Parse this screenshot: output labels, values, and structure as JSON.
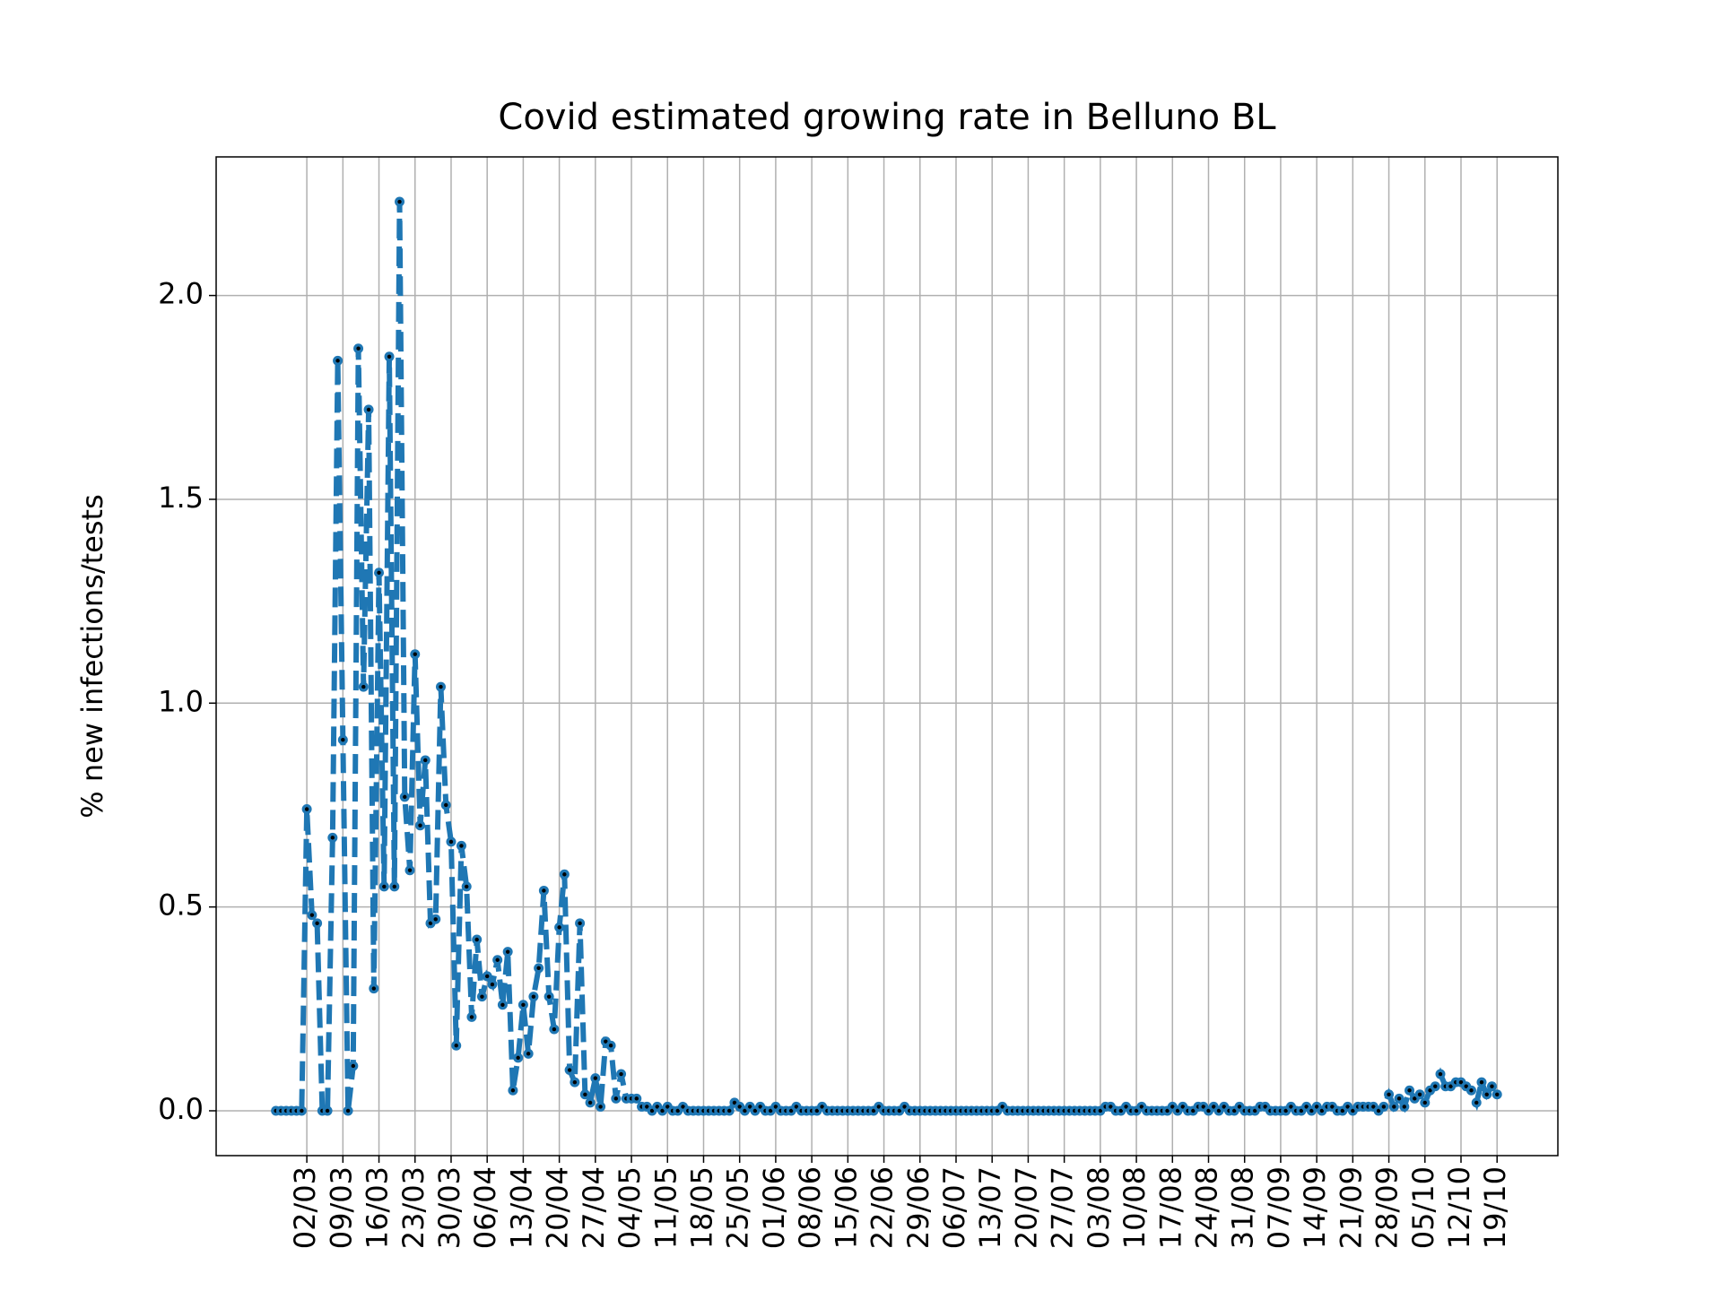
{
  "chart_data": {
    "type": "line",
    "title": "Covid estimated growing rate in Belluno BL",
    "y_label": "% new infections/tests",
    "color": "#1f77b4",
    "grid": true,
    "categories": [
      "25/02",
      "26/02",
      "27/02",
      "28/02",
      "29/02",
      "01/03",
      "02/03",
      "03/03",
      "04/03",
      "05/03",
      "06/03",
      "07/03",
      "08/03",
      "09/03",
      "10/03",
      "11/03",
      "12/03",
      "13/03",
      "14/03",
      "15/03",
      "16/03",
      "17/03",
      "18/03",
      "19/03",
      "20/03",
      "21/03",
      "22/03",
      "23/03",
      "24/03",
      "25/03",
      "26/03",
      "27/03",
      "28/03",
      "29/03",
      "30/03",
      "31/03",
      "01/04",
      "02/04",
      "03/04",
      "04/04",
      "05/04",
      "06/04",
      "07/04",
      "08/04",
      "09/04",
      "10/04",
      "11/04",
      "12/04",
      "13/04",
      "14/04",
      "15/04",
      "16/04",
      "17/04",
      "18/04",
      "19/04",
      "20/04",
      "21/04",
      "22/04",
      "23/04",
      "24/04",
      "25/04",
      "26/04",
      "27/04",
      "28/04",
      "29/04",
      "30/04",
      "01/05",
      "02/05",
      "03/05",
      "04/05",
      "05/05",
      "06/05",
      "07/05",
      "08/05",
      "09/05",
      "10/05",
      "11/05",
      "12/05",
      "13/05",
      "14/05",
      "15/05",
      "16/05",
      "17/05",
      "18/05",
      "19/05",
      "20/05",
      "21/05",
      "22/05",
      "23/05",
      "24/05",
      "25/05",
      "26/05",
      "27/05",
      "28/05",
      "29/05",
      "30/05",
      "31/05",
      "01/06",
      "02/06",
      "03/06",
      "04/06",
      "05/06",
      "06/06",
      "07/06",
      "08/06",
      "09/06",
      "10/06",
      "11/06",
      "12/06",
      "13/06",
      "14/06",
      "15/06",
      "16/06",
      "17/06",
      "18/06",
      "19/06",
      "20/06",
      "21/06",
      "22/06",
      "23/06",
      "24/06",
      "25/06",
      "26/06",
      "27/06",
      "28/06",
      "29/06",
      "30/06",
      "01/07",
      "02/07",
      "03/07",
      "04/07",
      "05/07",
      "06/07",
      "07/07",
      "08/07",
      "09/07",
      "10/07",
      "11/07",
      "12/07",
      "13/07",
      "14/07",
      "15/07",
      "16/07",
      "17/07",
      "18/07",
      "19/07",
      "20/07",
      "21/07",
      "22/07",
      "23/07",
      "24/07",
      "25/07",
      "26/07",
      "27/07",
      "28/07",
      "29/07",
      "30/07",
      "31/07",
      "01/08",
      "02/08",
      "03/08",
      "04/08",
      "05/08",
      "06/08",
      "07/08",
      "08/08",
      "09/08",
      "10/08",
      "11/08",
      "12/08",
      "13/08",
      "14/08",
      "15/08",
      "16/08",
      "17/08",
      "18/08",
      "19/08",
      "20/08",
      "21/08",
      "22/08",
      "23/08",
      "24/08",
      "25/08",
      "26/08",
      "27/08",
      "28/08",
      "29/08",
      "30/08",
      "31/08",
      "01/09",
      "02/09",
      "03/09",
      "04/09",
      "05/09",
      "06/09",
      "07/09",
      "08/09",
      "09/09",
      "10/09",
      "11/09",
      "12/09",
      "13/09",
      "14/09",
      "15/09",
      "16/09",
      "17/09",
      "18/09",
      "19/09",
      "20/09",
      "21/09",
      "22/09",
      "23/09",
      "24/09",
      "25/09",
      "26/09",
      "27/09",
      "28/09",
      "29/09",
      "30/09",
      "01/10",
      "02/10",
      "03/10",
      "04/10",
      "05/10",
      "06/10",
      "07/10",
      "08/10",
      "09/10",
      "10/10",
      "11/10",
      "12/10",
      "13/10",
      "14/10",
      "15/10",
      "16/10",
      "17/10",
      "18/10",
      "19/10"
    ],
    "values": [
      0,
      0,
      0,
      0,
      0,
      0,
      0.74,
      0.48,
      0.46,
      0,
      0,
      0.67,
      1.84,
      0.91,
      0,
      0.11,
      1.87,
      1.04,
      1.72,
      0.3,
      1.32,
      0.55,
      1.85,
      0.55,
      2.23,
      0.77,
      0.59,
      1.12,
      0.7,
      0.86,
      0.46,
      0.47,
      1.04,
      0.75,
      0.66,
      0.16,
      0.65,
      0.55,
      0.23,
      0.42,
      0.28,
      0.33,
      0.31,
      0.37,
      0.26,
      0.39,
      0.05,
      0.13,
      0.26,
      0.14,
      0.28,
      0.35,
      0.54,
      0.28,
      0.2,
      0.45,
      0.58,
      0.1,
      0.07,
      0.46,
      0.04,
      0.02,
      0.08,
      0.01,
      0.17,
      0.16,
      0.03,
      0.09,
      0.03,
      0.03,
      0.03,
      0.01,
      0.01,
      0,
      0.01,
      0,
      0.01,
      0,
      0,
      0.01,
      0,
      0,
      0,
      0,
      0,
      0,
      0,
      0,
      0,
      0.02,
      0.01,
      0,
      0.01,
      0,
      0.01,
      0,
      0,
      0.01,
      0,
      0,
      0,
      0.01,
      0,
      0,
      0,
      0,
      0.01,
      0,
      0,
      0,
      0,
      0,
      0,
      0,
      0,
      0,
      0,
      0.01,
      0,
      0,
      0,
      0,
      0.01,
      0,
      0,
      0,
      0,
      0,
      0,
      0,
      0,
      0,
      0,
      0,
      0,
      0,
      0,
      0,
      0,
      0,
      0,
      0.01,
      0,
      0,
      0,
      0,
      0,
      0,
      0,
      0,
      0,
      0,
      0,
      0,
      0,
      0,
      0,
      0,
      0,
      0,
      0,
      0.01,
      0.01,
      0,
      0,
      0.01,
      0,
      0,
      0.01,
      0,
      0,
      0,
      0,
      0,
      0.01,
      0,
      0.01,
      0,
      0,
      0.01,
      0.01,
      0,
      0.01,
      0,
      0.01,
      0,
      0,
      0.01,
      0,
      0,
      0,
      0.01,
      0.01,
      0,
      0,
      0,
      0,
      0.01,
      0,
      0,
      0.01,
      0,
      0.01,
      0,
      0.01,
      0.01,
      0,
      0,
      0.01,
      0,
      0.01,
      0.01,
      0.01,
      0.01,
      0,
      0.01,
      0.04,
      0.01,
      0.03,
      0.01,
      0.05,
      0.03,
      0.04,
      0.02,
      0.05,
      0.06,
      0.09,
      0.06,
      0.06,
      0.07,
      0.07,
      0.06,
      0.05,
      0.02,
      0.07,
      0.04,
      0.06,
      0.04
    ],
    "ylim": [
      -0.11,
      2.34
    ],
    "yticks": [
      {
        "value": 0,
        "label": "0.0"
      },
      0.5,
      {
        "value": 1,
        "label": "1.0"
      },
      1.5,
      {
        "value": 2,
        "label": "2.0"
      }
    ],
    "xticks": [
      "02/03",
      "09/03",
      "16/03",
      "23/03",
      "30/03",
      "06/04",
      "13/04",
      "20/04",
      "27/04",
      "04/05",
      "11/05",
      "18/05",
      "25/05",
      "01/06",
      "08/06",
      "15/06",
      "22/06",
      "29/06",
      "06/07",
      "13/07",
      "20/07",
      "27/07",
      "03/08",
      "10/08",
      "17/08",
      "24/08",
      "31/08",
      "07/09",
      "14/09",
      "21/09",
      "28/09",
      "05/10",
      "12/10",
      "19/10"
    ]
  }
}
